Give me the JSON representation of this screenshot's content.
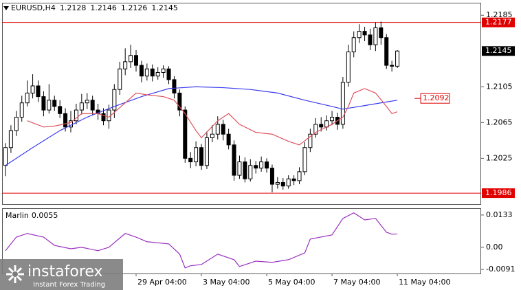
{
  "chart_data": [
    {
      "type": "candlestick",
      "title": "EURUSD,H4",
      "open": [
        1.2017,
        1.2037,
        1.2056,
        1.2071,
        1.2087,
        1.2098,
        1.2106,
        1.2094,
        1.2079,
        1.209,
        1.2083,
        1.2075,
        1.206,
        1.2067,
        1.2079,
        1.2087,
        1.209,
        1.2079,
        1.2075,
        1.2067,
        1.2079,
        1.2102,
        1.2125,
        1.2133,
        1.214,
        1.2129,
        1.2117,
        1.2125,
        1.2117,
        1.2121,
        1.2125,
        1.2113,
        1.2098,
        1.2079,
        1.2025,
        1.2021,
        1.2037,
        1.2017,
        1.2048,
        1.2052,
        1.2063,
        1.2052,
        1.204,
        1.2006,
        1.2021,
        1.2002,
        1.2017,
        1.2014,
        1.2021,
        1.2014,
        1.1996,
        1.1998,
        1.1994,
        1.2002,
        1.2,
        1.201,
        1.2037,
        1.2052,
        1.2063,
        1.206,
        1.2067,
        1.2071,
        1.2063,
        1.211,
        1.2144,
        1.216,
        1.2167,
        1.2163,
        1.2152,
        1.2171,
        1.216,
        1.2129,
        1.2128
      ],
      "high": [
        1.2042,
        1.2062,
        1.2078,
        1.2095,
        1.2112,
        1.2119,
        1.2112,
        1.21,
        1.2108,
        1.2095,
        1.209,
        1.2081,
        1.2078,
        1.2086,
        1.2097,
        1.2098,
        1.2095,
        1.2086,
        1.2081,
        1.2085,
        1.2108,
        1.2133,
        1.2148,
        1.2152,
        1.2146,
        1.2134,
        1.2131,
        1.213,
        1.2127,
        1.2129,
        1.2128,
        1.2117,
        1.2102,
        1.2083,
        1.2032,
        1.2044,
        1.2041,
        1.2055,
        1.2062,
        1.2072,
        1.2068,
        1.2058,
        1.2045,
        1.2028,
        1.2026,
        1.2024,
        1.2022,
        1.2027,
        1.2025,
        1.2018,
        1.2004,
        1.2003,
        1.2006,
        1.2006,
        1.2015,
        1.2043,
        1.2058,
        1.207,
        1.2071,
        1.2073,
        1.2078,
        1.2076,
        1.2116,
        1.2152,
        1.2167,
        1.2175,
        1.2172,
        1.217,
        1.2177,
        1.2178,
        1.2164,
        1.2134,
        1.2146
      ],
      "low": [
        1.2005,
        1.2031,
        1.205,
        1.2066,
        1.2083,
        1.2092,
        1.2088,
        1.2072,
        1.2075,
        1.2078,
        1.207,
        1.2055,
        1.2054,
        1.2063,
        1.2074,
        1.208,
        1.2073,
        1.2068,
        1.2062,
        1.2058,
        1.207,
        1.2096,
        1.2118,
        1.2126,
        1.2122,
        1.211,
        1.2112,
        1.2111,
        1.2113,
        1.2115,
        1.2108,
        1.2092,
        1.2072,
        1.202,
        1.2014,
        1.2016,
        1.2012,
        1.2013,
        1.2043,
        1.2046,
        1.2045,
        1.2035,
        1.2,
        1.2002,
        1.1998,
        1.1999,
        1.2008,
        1.201,
        1.2009,
        1.1987,
        1.1991,
        1.199,
        1.1991,
        1.1995,
        1.1996,
        1.2006,
        1.2032,
        1.2048,
        1.2055,
        1.2056,
        1.2062,
        1.2057,
        1.2058,
        1.2105,
        1.2138,
        1.2154,
        1.2156,
        1.2146,
        1.2145,
        1.2152,
        1.2125,
        1.2122,
        1.2126
      ],
      "close": [
        1.2037,
        1.2056,
        1.2071,
        1.2087,
        1.2098,
        1.2106,
        1.2094,
        1.2079,
        1.209,
        1.2083,
        1.2075,
        1.206,
        1.2067,
        1.2079,
        1.2087,
        1.209,
        1.2079,
        1.2075,
        1.2067,
        1.2079,
        1.2102,
        1.2125,
        1.2133,
        1.214,
        1.2129,
        1.2117,
        1.2125,
        1.2117,
        1.2121,
        1.2125,
        1.2113,
        1.2098,
        1.2079,
        1.2025,
        1.2021,
        1.2037,
        1.2017,
        1.2048,
        1.2052,
        1.2063,
        1.2052,
        1.204,
        1.2006,
        1.2021,
        1.2002,
        1.2017,
        1.2014,
        1.2021,
        1.2014,
        1.1996,
        1.1998,
        1.1994,
        1.2002,
        1.2,
        1.201,
        1.2037,
        1.2052,
        1.2063,
        1.206,
        1.2067,
        1.2071,
        1.2063,
        1.211,
        1.2144,
        1.216,
        1.2167,
        1.2163,
        1.2152,
        1.2171,
        1.216,
        1.2129,
        1.2128,
        1.2145
      ],
      "up_color": "#ffffff",
      "down_color": "#000000",
      "series": [
        {
          "color": "#3b3bf0",
          "x": [
            0,
            5,
            10,
            15,
            20,
            25,
            30,
            35,
            40,
            45,
            50,
            55,
            60,
            62,
            66,
            70,
            72
          ],
          "values": [
            1.2017,
            1.2037,
            1.2056,
            1.2071,
            1.2083,
            1.2094,
            1.2103,
            1.2105,
            1.2104,
            1.2102,
            1.2098,
            1.209,
            1.2083,
            1.208,
            1.2084,
            1.2088,
            1.209
          ]
        },
        {
          "color": "#e0505c",
          "x": [
            4,
            7,
            9,
            12,
            14,
            17,
            19,
            22,
            24,
            26,
            29,
            31,
            33,
            35,
            36,
            39,
            41,
            43,
            46,
            49,
            52,
            54,
            57,
            60,
            62,
            63,
            64,
            66,
            68,
            70,
            71,
            72
          ],
          "values": [
            1.2067,
            1.206,
            1.2061,
            1.2065,
            1.2075,
            1.2075,
            1.2071,
            1.2087,
            1.2098,
            1.2096,
            1.2094,
            1.209,
            1.2075,
            1.2056,
            1.2048,
            1.2067,
            1.2075,
            1.2063,
            1.2054,
            1.2052,
            1.2044,
            1.204,
            1.2054,
            1.2063,
            1.2071,
            1.2083,
            1.2098,
            1.2103,
            1.2098,
            1.2083,
            1.2075,
            1.2077
          ]
        }
      ],
      "levels": [
        {
          "value": 1.2177,
          "color": "#e00000"
        },
        {
          "value": 1.1986,
          "color": "#e00000"
        }
      ],
      "price_label": {
        "value": 1.2092,
        "color": "#e00000"
      },
      "xlim": [
        -0.63,
        87.4
      ],
      "ylim": [
        1.1973,
        1.2199
      ],
      "yticks": [
        1.2185,
        1.2105,
        1.2065,
        1.2025
      ]
    },
    {
      "type": "line",
      "series": [
        {
          "name": "Marlin",
          "color": "#9b2fc0",
          "x": [
            0,
            2,
            4,
            7,
            9,
            12,
            14,
            17,
            19,
            22,
            24,
            26,
            30,
            32,
            33,
            34,
            36,
            39,
            42,
            43,
            46,
            49,
            52,
            55,
            56,
            60,
            62,
            64,
            66,
            68,
            70,
            71,
            72
          ],
          "values": [
            -0.0014,
            0.0042,
            0.0057,
            0.0042,
            0.0008,
            -0.0006,
            0,
            -0.0014,
            0,
            0.0057,
            0.0042,
            0.0023,
            0.0014,
            -0.0028,
            -0.0085,
            -0.0076,
            -0.0071,
            -0.0028,
            -0.0051,
            -0.0079,
            -0.0057,
            -0.0062,
            -0.0051,
            -0.0023,
            0.0034,
            0.0051,
            0.0119,
            0.0142,
            0.0113,
            0.0119,
            0.0062,
            0.0054,
            0.0055
          ]
        }
      ],
      "xlim": [
        -0.63,
        87.4
      ],
      "ylim": [
        -0.0108,
        0.0161
      ],
      "yticks": [
        0.0133,
        {
          "value": 0,
          "label": "0.00"
        },
        -0.0091
      ],
      "xticks": [
        {
          "value": 24,
          "label": "29 Apr 04:00"
        },
        {
          "value": 36,
          "label": "3 May 04:00"
        },
        {
          "value": 48,
          "label": "5 May 04:00"
        },
        {
          "value": 60,
          "label": "7 May 04:00"
        },
        {
          "value": 72,
          "label": "11 May 04:00"
        }
      ]
    }
  ],
  "watermark": {
    "brand": "instaforex",
    "tagline": "Instant Forex Trading"
  }
}
